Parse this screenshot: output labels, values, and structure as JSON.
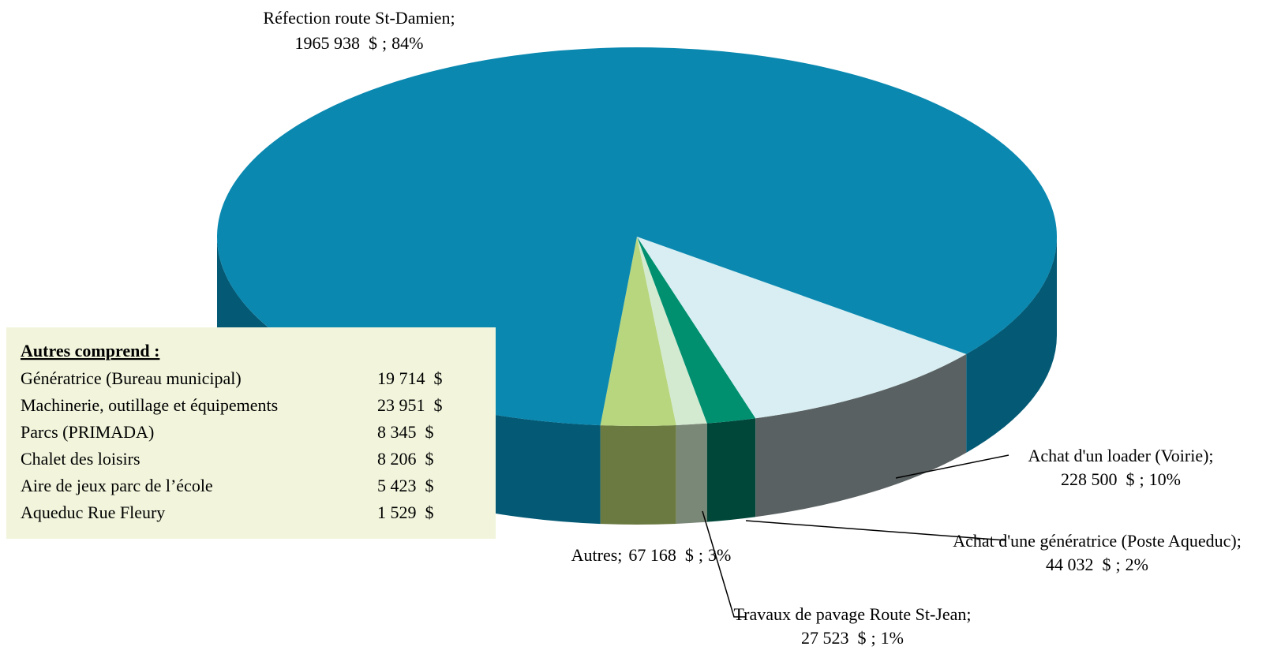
{
  "chart_data": {
    "type": "pie3d",
    "categories": [
      "Réfection route St-Damien",
      "Achat d'un loader (Voirie)",
      "Achat d'une génératrice (Poste Aqueduc)",
      "Travaux de pavage Route St-Jean",
      "Autres"
    ],
    "values": [
      1965938,
      228500,
      44032,
      27523,
      67168
    ],
    "value_labels": [
      "1965 938  $",
      "228 500  $",
      "44 032  $",
      "27 523  $",
      "67 168  $"
    ],
    "percents": [
      84,
      10,
      2,
      1,
      3
    ],
    "percent_labels": [
      "84%",
      "10%",
      "2%",
      "1%",
      "3%"
    ],
    "separator": ";",
    "colors": [
      "#0a88b0",
      "#d8eef2",
      "#009070",
      "#d3ead0",
      "#b8d67e"
    ],
    "side_colors": [
      "#045a75",
      "#5a6162",
      "#00473a",
      "#7a8877",
      "#6a7a40"
    ]
  },
  "inset": {
    "title": "Autres comprend :",
    "rows": [
      [
        "Génératrice (Bureau municipal)",
        "19 714  $"
      ],
      [
        "Machinerie, outillage et équipements",
        "23 951  $"
      ],
      [
        "Parcs (PRIMADA)",
        "8 345  $"
      ],
      [
        "Chalet des loisirs",
        "8 206  $"
      ],
      [
        "Aire de jeux parc de l’école",
        "5 423  $"
      ],
      [
        "Aqueduc Rue Fleury",
        "1 529  $"
      ]
    ]
  }
}
